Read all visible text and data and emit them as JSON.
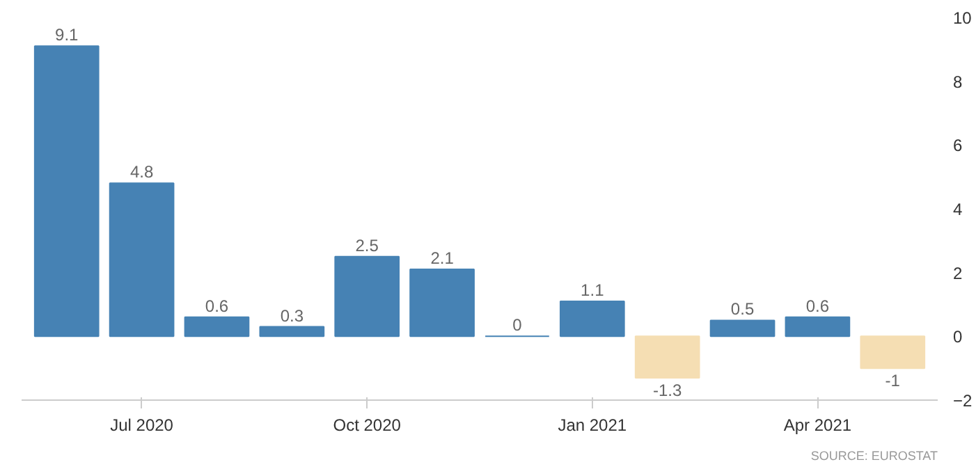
{
  "chart_data": {
    "type": "bar",
    "categories": [
      null,
      "Jul 2020",
      null,
      null,
      "Oct 2020",
      null,
      null,
      "Jan 2021",
      null,
      null,
      "Apr 2021",
      null
    ],
    "values": [
      9.1,
      4.8,
      0.6,
      0.3,
      2.5,
      2.1,
      0,
      1.1,
      -1.3,
      0.5,
      0.6,
      -1
    ],
    "colors": [
      "#4682b4",
      "#4682b4",
      "#4682b4",
      "#4682b4",
      "#4682b4",
      "#4682b4",
      "#4682b4",
      "#4682b4",
      "#f5deb3",
      "#4682b4",
      "#4682b4",
      "#f5deb3"
    ],
    "ylim": [
      -2,
      10
    ],
    "yticks": [
      -2,
      0,
      2,
      4,
      6,
      8,
      10
    ],
    "data_labels": true,
    "grid": false,
    "annotations": [
      "SOURCE: EUROSTAT"
    ]
  }
}
